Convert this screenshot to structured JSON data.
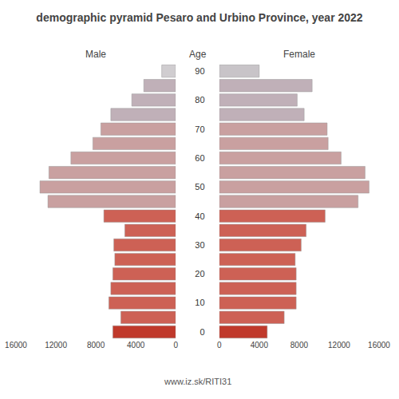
{
  "chart_data": {
    "type": "bar",
    "orientation": "horizontal",
    "title": "demographic pyramid Pesaro and Urbino Province, year 2022",
    "ylabel": "Age",
    "categories": [
      "0",
      null,
      "10",
      null,
      "20",
      null,
      "30",
      null,
      "40",
      null,
      "50",
      null,
      "60",
      null,
      "70",
      null,
      "80",
      null,
      "90"
    ],
    "series": [
      {
        "name": "Male",
        "values": [
          6300,
          5500,
          6700,
          6500,
          6300,
          6100,
          6200,
          5100,
          7200,
          12800,
          13600,
          12700,
          10500,
          8300,
          7500,
          6500,
          4400,
          3200,
          1400
        ],
        "colors": [
          "#c0392b",
          "#cd6155",
          "#cd6155",
          "#cd6155",
          "#cd6155",
          "#cd6155",
          "#cd6155",
          "#cd6155",
          "#cd6155",
          "#c9a0a0",
          "#c9a0a0",
          "#c9a0a0",
          "#c9a0a0",
          "#c9a0a0",
          "#c9a0a0",
          "#c0b0b8",
          "#c0b0b8",
          "#c0b0b8",
          "#d0cdd0"
        ],
        "xlim": [
          16000,
          0
        ],
        "xticks": [
          16000,
          12000,
          8000,
          4000,
          0
        ]
      },
      {
        "name": "Female",
        "values": [
          4800,
          6500,
          7700,
          7700,
          7700,
          7600,
          8200,
          8700,
          10600,
          13900,
          15000,
          14600,
          12200,
          10900,
          10800,
          8500,
          7800,
          9300,
          4000
        ],
        "colors": [
          "#c0392b",
          "#cd6155",
          "#cd6155",
          "#cd6155",
          "#cd6155",
          "#cd6155",
          "#cd6155",
          "#cd6155",
          "#cd6155",
          "#c9a0a0",
          "#c9a0a0",
          "#c9a0a0",
          "#c9a0a0",
          "#c9a0a0",
          "#c9a0a0",
          "#c0b0b8",
          "#c0b0b8",
          "#c0b0b8",
          "#c8c4c8"
        ],
        "xlim": [
          0,
          16000
        ],
        "xticks": [
          0,
          4000,
          8000,
          12000,
          16000
        ]
      }
    ],
    "annotations": [
      {
        "text": "www.iz.sk/RITI31"
      }
    ],
    "grid": false
  }
}
